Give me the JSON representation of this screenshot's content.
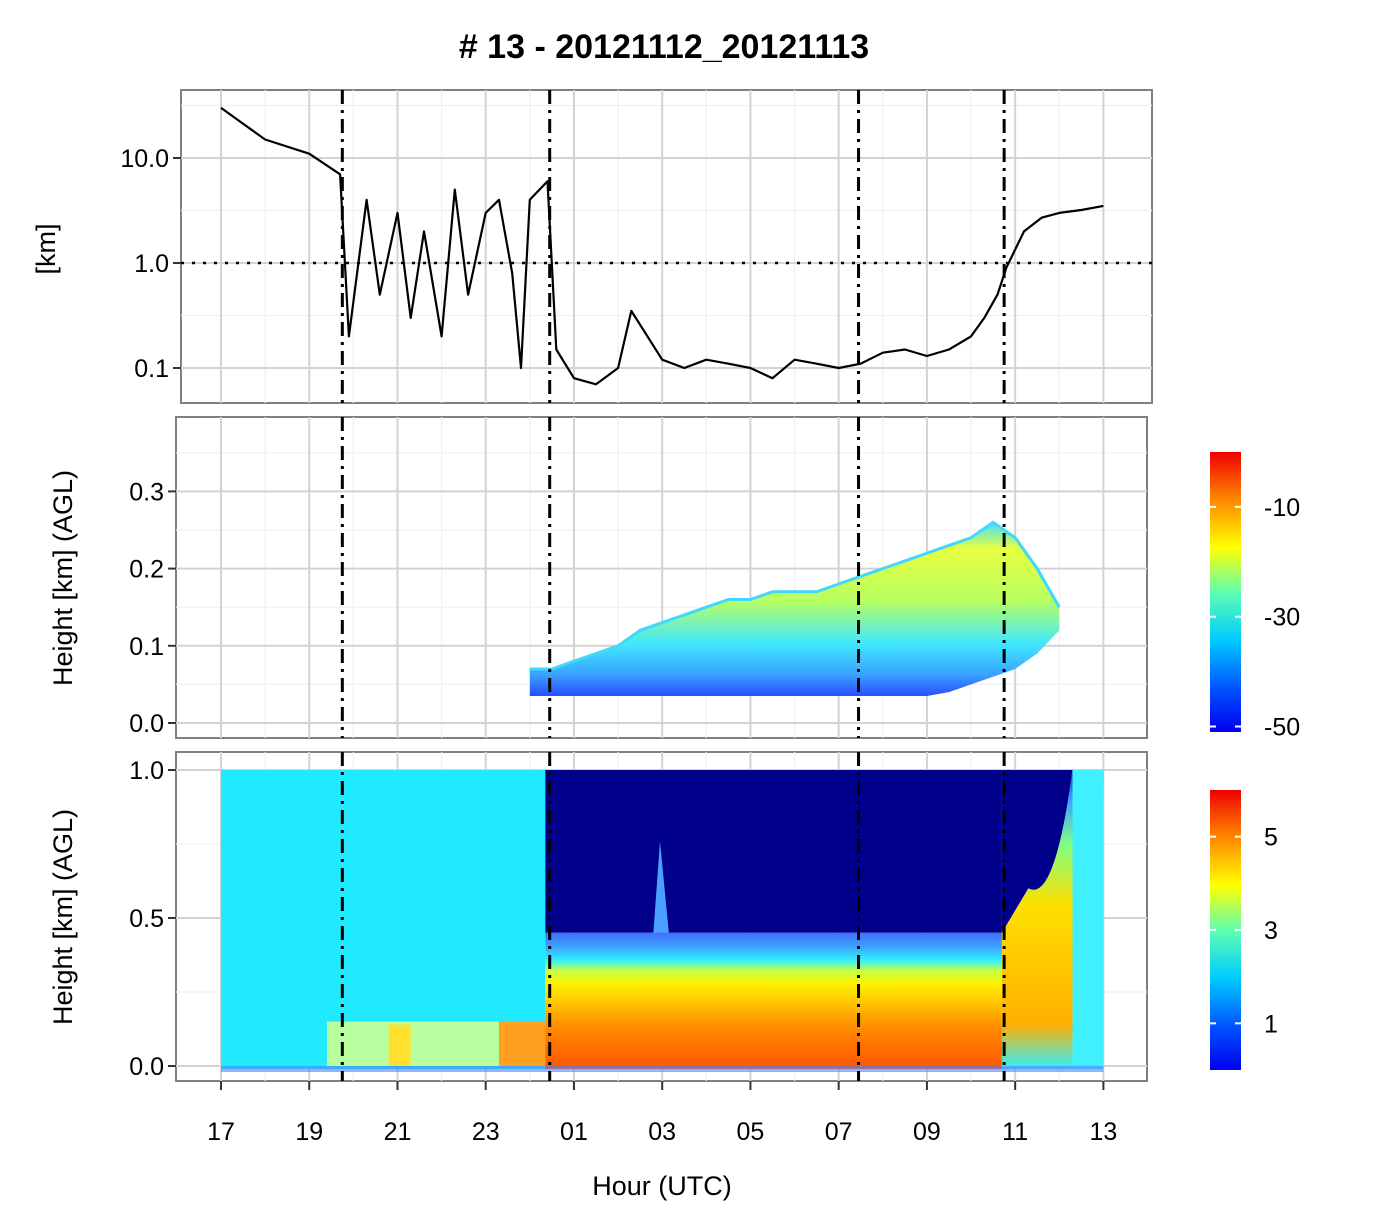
{
  "chart_data": [
    {
      "type": "line",
      "title": "# 13  -  20121112_20121113",
      "xlabel": "Hour (UTC)",
      "ylabel": "[km]",
      "y_scale": "log",
      "ylim": [
        0.05,
        45
      ],
      "x_ticks": [
        "17",
        "19",
        "21",
        "23",
        "01",
        "03",
        "05",
        "07",
        "09",
        "11",
        "13"
      ],
      "y_ticks": [
        "0.1",
        "1.0",
        "10.0"
      ],
      "x_hours": [
        17,
        18,
        19,
        19.7,
        19.9,
        20.3,
        20.6,
        21,
        21.3,
        21.6,
        22,
        22.3,
        22.6,
        23,
        23.3,
        23.6,
        23.8,
        24,
        24.4,
        24.6,
        25.0,
        25.5,
        26.0,
        26.3,
        27.0,
        27.5,
        28.0,
        28.5,
        29.0,
        29.5,
        30.0,
        30.5,
        31.0,
        31.5,
        32.0,
        32.5,
        33.0,
        33.5,
        34.0,
        34.3,
        34.6,
        34.8,
        35.2,
        35.6,
        36.0,
        36.5,
        37.0
      ],
      "values": [
        30,
        15,
        11,
        7,
        0.2,
        4,
        0.5,
        3,
        0.3,
        2,
        0.2,
        5,
        0.5,
        3,
        4,
        0.8,
        0.1,
        4,
        6,
        0.15,
        0.08,
        0.07,
        0.1,
        0.35,
        0.12,
        0.1,
        0.12,
        0.11,
        0.1,
        0.08,
        0.12,
        0.11,
        0.1,
        0.11,
        0.14,
        0.15,
        0.13,
        0.15,
        0.2,
        0.3,
        0.5,
        0.9,
        2.0,
        2.7,
        3.0,
        3.2,
        3.5
      ],
      "hline": 1.0,
      "vlines": [
        19.75,
        24.45,
        31.45,
        34.75
      ]
    },
    {
      "type": "heatmap",
      "ylabel": "Height [km] (AGL)",
      "ylim": [
        -0.02,
        0.39
      ],
      "y_ticks": [
        "0.0",
        "0.1",
        "0.2",
        "0.3"
      ],
      "colorbar_ticks": [
        "-10",
        "-30",
        "-50"
      ],
      "colorbar_range": [
        -51,
        0
      ],
      "profile_x_hours": [
        24.0,
        24.5,
        25.0,
        25.5,
        26.0,
        26.5,
        27.0,
        27.5,
        28.0,
        28.5,
        29.0,
        29.5,
        30.0,
        30.5,
        31.0,
        31.5,
        32.0,
        32.5,
        33.0,
        33.5,
        34.0,
        34.5,
        35.0,
        35.5,
        36.0
      ],
      "profile_top_km": [
        0.07,
        0.07,
        0.08,
        0.09,
        0.1,
        0.12,
        0.13,
        0.14,
        0.15,
        0.16,
        0.16,
        0.17,
        0.17,
        0.17,
        0.18,
        0.19,
        0.2,
        0.21,
        0.22,
        0.23,
        0.24,
        0.26,
        0.24,
        0.2,
        0.15
      ],
      "profile_bottom_km": [
        0.035,
        0.035,
        0.035,
        0.035,
        0.035,
        0.035,
        0.035,
        0.035,
        0.035,
        0.035,
        0.035,
        0.035,
        0.035,
        0.035,
        0.035,
        0.035,
        0.035,
        0.035,
        0.035,
        0.04,
        0.05,
        0.06,
        0.07,
        0.09,
        0.12
      ]
    },
    {
      "type": "heatmap",
      "ylabel": "Height [km] (AGL)",
      "xlabel": "Hour (UTC)",
      "ylim": [
        -0.05,
        1.0
      ],
      "y_ticks": [
        "0.0",
        "0.5",
        "1.0"
      ],
      "colorbar_ticks": [
        "5",
        "3",
        "1"
      ],
      "colorbar_range": [
        0,
        6
      ],
      "x_ticks": [
        "17",
        "19",
        "21",
        "23",
        "01",
        "03",
        "05",
        "07",
        "09",
        "11",
        "13"
      ],
      "stable_layer_top_km": 0.45,
      "surface_layer_top_km": 0.2
    }
  ]
}
